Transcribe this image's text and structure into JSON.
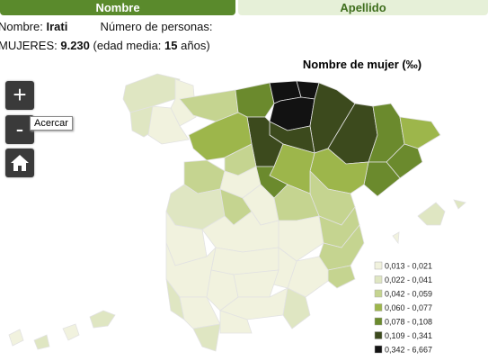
{
  "tabs": [
    "Nombre",
    "Apellido"
  ],
  "info": {
    "name_label": "Nombre:",
    "name": "Irati",
    "persons_label": "Número de personas:",
    "gender": "MUJERES:",
    "count": "9.230",
    "age_label": "(edad media:",
    "age": "15",
    "age_unit": "años)"
  },
  "map": {
    "title": "Nombre de mujer (‰)",
    "zoom_in": "+",
    "zoom_out": "-",
    "tooltip": "Acercar",
    "legend": [
      {
        "label": "0,013 - 0,021",
        "color": "#f1f2de"
      },
      {
        "label": "0,022 - 0,041",
        "color": "#dfe6c2"
      },
      {
        "label": "0,042 - 0,059",
        "color": "#c5d490"
      },
      {
        "label": "0,060 - 0,077",
        "color": "#9db64b"
      },
      {
        "label": "0,078 - 0,108",
        "color": "#6b8a2d"
      },
      {
        "label": "0,109 - 0,341",
        "color": "#3c4a1d"
      },
      {
        "label": "0,342 - 6,667",
        "color": "#121212"
      }
    ]
  }
}
